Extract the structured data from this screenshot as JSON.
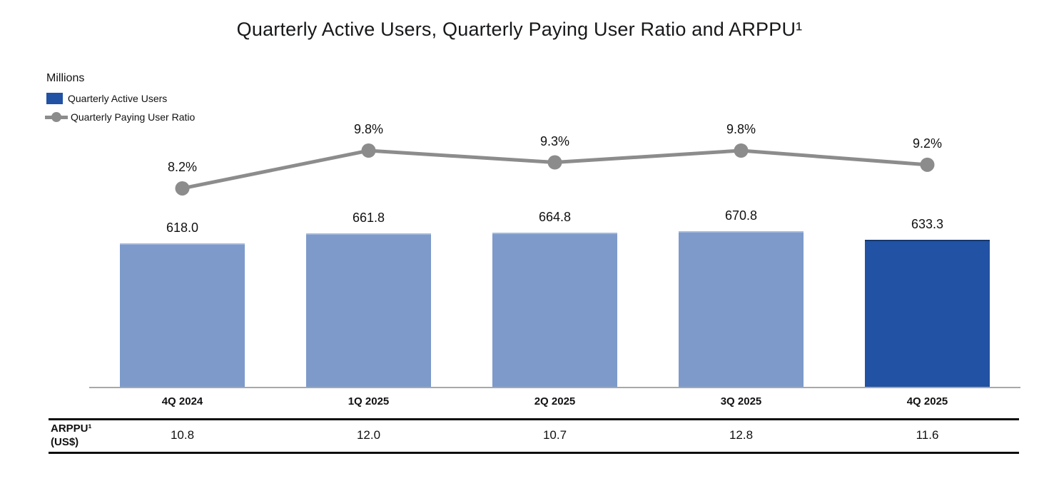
{
  "title": "Quarterly Active Users, Quarterly Paying User Ratio and ARPPU¹",
  "legend": {
    "axis_unit_label": "Millions",
    "items": [
      {
        "label": "Quarterly Active Users",
        "marker": "square"
      },
      {
        "label": "Quarterly Paying User Ratio",
        "marker": "line-dot"
      }
    ]
  },
  "colors": {
    "bar_light": "#7d9aca",
    "bar_light_edge": "#a3b8dc",
    "bar_highlight": "#2152a3",
    "bar_highlight_edge": "#16386f",
    "line_gray": "#8c8c8c",
    "axis_gray": "#a8a8a8",
    "rule_black": "#0d0d0d"
  },
  "table": {
    "row_label_line1": "ARPPU¹",
    "row_label_line2": "(US$)"
  },
  "chart_data": {
    "type": "bar",
    "categories": [
      "4Q 2024",
      "1Q 2025",
      "2Q 2025",
      "3Q 2025",
      "4Q 2025"
    ],
    "series": [
      {
        "name": "Quarterly Active Users",
        "type": "bar",
        "unit": "Millions",
        "values": [
          618.0,
          661.8,
          664.8,
          670.8,
          633.3
        ],
        "labels": [
          "618.0",
          "661.8",
          "664.8",
          "670.8",
          "633.3"
        ],
        "highlight_index": 4
      },
      {
        "name": "Quarterly Paying User Ratio",
        "type": "line",
        "unit": "%",
        "values": [
          8.2,
          9.8,
          9.3,
          9.8,
          9.2
        ],
        "labels": [
          "8.2%",
          "9.8%",
          "9.3%",
          "9.8%",
          "9.2%"
        ]
      },
      {
        "name": "ARPPU¹ (US$)",
        "type": "table-row",
        "unit": "US$",
        "values": [
          10.8,
          12.0,
          10.7,
          12.8,
          11.6
        ],
        "labels": [
          "10.8",
          "12.0",
          "10.7",
          "12.8",
          "11.6"
        ]
      }
    ],
    "legend_position": "top-left",
    "grid": false,
    "value_axis_hidden": true
  }
}
